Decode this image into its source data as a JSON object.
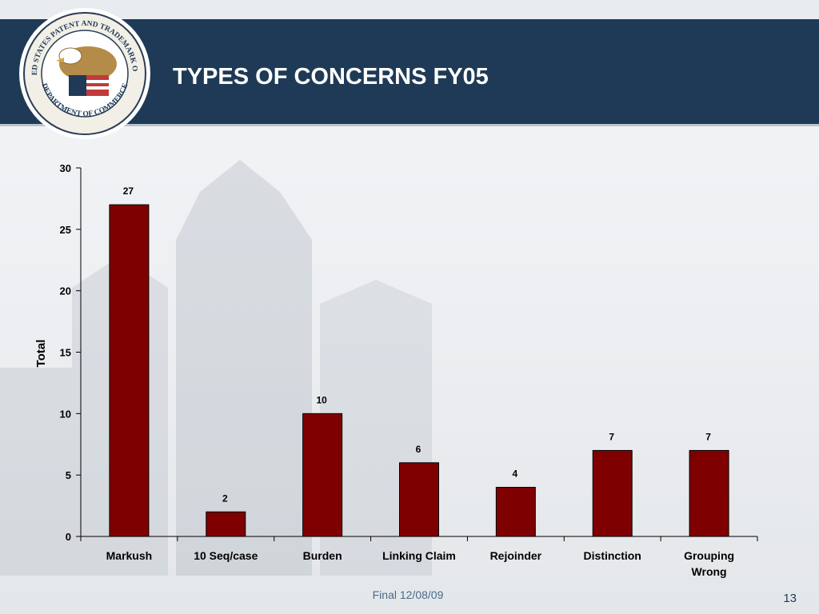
{
  "slide": {
    "title": "TYPES OF CONCERNS FY05",
    "footer": "Final 12/08/09",
    "page_number": "13"
  },
  "seal": {
    "top_text": "UNITED STATES PATENT AND TRADEMARK OFFICE",
    "bottom_text": "DEPARTMENT OF COMMERCE",
    "icon": "eagle-icon"
  },
  "colors": {
    "header": "#1e3a56",
    "bar": "#7f0000",
    "title_text": "#ffffff",
    "footer_text": "#4a6a8a"
  },
  "chart_data": {
    "type": "bar",
    "title": "",
    "xlabel": "",
    "ylabel": "Total",
    "ylim": [
      0,
      30
    ],
    "yticks": [
      0,
      5,
      10,
      15,
      20,
      25,
      30
    ],
    "categories": [
      "Markush",
      "10 Seq/case",
      "Burden",
      "Linking Claim",
      "Rejoinder",
      "Distinction",
      "Grouping Wrong"
    ],
    "values": [
      27,
      2,
      10,
      6,
      4,
      7,
      7
    ],
    "data_labels": true,
    "grid": false,
    "legend": "none"
  }
}
